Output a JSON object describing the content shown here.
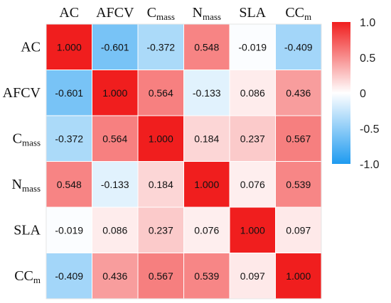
{
  "chart_data": {
    "type": "heatmap",
    "variables": [
      {
        "base": "AC",
        "sub": ""
      },
      {
        "base": "AFCV",
        "sub": ""
      },
      {
        "base": "C",
        "sub": "mass"
      },
      {
        "base": "N",
        "sub": "mass"
      },
      {
        "base": "SLA",
        "sub": ""
      },
      {
        "base": "CC",
        "sub": "m"
      }
    ],
    "values": [
      [
        1.0,
        -0.601,
        -0.372,
        0.548,
        -0.019,
        -0.409
      ],
      [
        -0.601,
        1.0,
        0.564,
        -0.133,
        0.086,
        0.436
      ],
      [
        -0.372,
        0.564,
        1.0,
        0.184,
        0.237,
        0.567
      ],
      [
        0.548,
        -0.133,
        0.184,
        1.0,
        0.076,
        0.539
      ],
      [
        -0.019,
        0.086,
        0.237,
        0.076,
        1.0,
        0.097
      ],
      [
        -0.409,
        0.436,
        0.567,
        0.539,
        0.097,
        1.0
      ]
    ],
    "value_labels": [
      [
        "1.000",
        "-0.601",
        "-0.372",
        "0.548",
        "-0.019",
        "-0.409"
      ],
      [
        "-0.601",
        "1.000",
        "0.564",
        "-0.133",
        "0.086",
        "0.436"
      ],
      [
        "-0.372",
        "0.564",
        "1.000",
        "0.184",
        "0.237",
        "0.567"
      ],
      [
        "0.548",
        "-0.133",
        "0.184",
        "1.000",
        "0.076",
        "0.539"
      ],
      [
        "-0.019",
        "0.086",
        "0.237",
        "0.076",
        "1.000",
        "0.097"
      ],
      [
        "-0.409",
        "0.436",
        "0.567",
        "0.539",
        "0.097",
        "1.000"
      ]
    ],
    "colorbar": {
      "range": [
        -1.0,
        1.0
      ],
      "ticks": [
        {
          "value": 1.0,
          "label": "1.0"
        },
        {
          "value": 0.5,
          "label": "0.5"
        },
        {
          "value": 0.0,
          "label": "0"
        },
        {
          "value": -0.5,
          "label": "-0.5"
        },
        {
          "value": -1.0,
          "label": "-1.0"
        }
      ],
      "colors": {
        "negative": "#1E9BF0",
        "zero": "#FFFFFF",
        "positive": "#F01E1E"
      }
    },
    "grid": true
  }
}
